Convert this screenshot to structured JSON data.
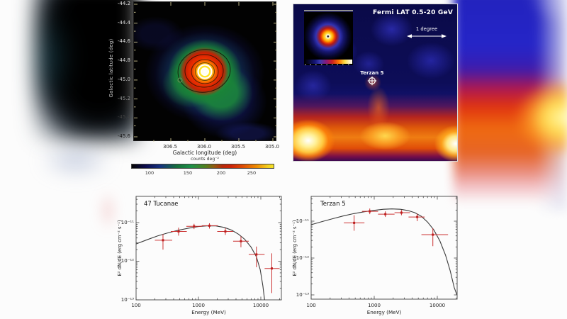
{
  "map_panel": {
    "ylabel": "Galactic latitude (deg)",
    "xlabel": "Galactic longitude (deg)",
    "ytick_labels": [
      "-44.2",
      "-44.4",
      "-44.6",
      "-44.8",
      "-45.0",
      "-45.2",
      "-45.4",
      "-45.6"
    ],
    "xtick_labels": [
      "306.5",
      "306.0",
      "305.5",
      "305.0"
    ],
    "colorbar": {
      "label": "counts deg⁻²",
      "tick_labels": [
        "100",
        "150",
        "200",
        "250"
      ]
    }
  },
  "fermi_panel": {
    "title": "Fermi LAT  0.5-20 GeV",
    "scale_label": "1 degree",
    "source_label": "Terzan 5"
  },
  "colors": {
    "data_point": "#bb1f1f",
    "error_bar": "#cc3333",
    "model_curve": "#3a3a3a",
    "frame": "#555555",
    "map_heat_sequence": [
      "#000000",
      "#14317e",
      "#1d9048",
      "#cc2408",
      "#ee8c02",
      "#f5e42a"
    ],
    "fermi_sky_base": "#0d0d58"
  },
  "chart_data": [
    {
      "type": "scatter",
      "title": "47 Tucanae",
      "xlabel": "Energy (MeV)",
      "ylabel": "E² dN/dE (erg cm⁻² s⁻¹)",
      "xscale": "log",
      "yscale": "log",
      "grid": false,
      "xlim": [
        100,
        21000
      ],
      "ylim": [
        1e-13,
        4.8e-11
      ],
      "xtick_values": [
        100,
        1000,
        10000
      ],
      "xtick_labels": [
        "100",
        "1000",
        "10000"
      ],
      "ytick_values": [
        1e-11,
        1e-12,
        1e-13
      ],
      "ytick_labels": [
        "10⁻¹¹",
        "10⁻¹²",
        "10⁻¹³"
      ],
      "points": [
        {
          "E": 270,
          "E_lo": 200,
          "E_hi": 380,
          "F": 3.5e-12,
          "F_lo": 2e-12,
          "F_hi": 5e-12
        },
        {
          "E": 480,
          "E_lo": 360,
          "E_hi": 650,
          "F": 5.9e-12,
          "F_lo": 4.6e-12,
          "F_hi": 7.4e-12
        },
        {
          "E": 850,
          "E_lo": 640,
          "E_hi": 1150,
          "F": 8e-12,
          "F_lo": 6.8e-12,
          "F_hi": 9.3e-12
        },
        {
          "E": 1500,
          "E_lo": 1130,
          "E_hi": 2050,
          "F": 8.3e-12,
          "F_lo": 7e-12,
          "F_hi": 9.6e-12
        },
        {
          "E": 2700,
          "E_lo": 2000,
          "E_hi": 3600,
          "F": 5.9e-12,
          "F_lo": 4.8e-12,
          "F_hi": 7.2e-12
        },
        {
          "E": 4800,
          "E_lo": 3600,
          "E_hi": 6400,
          "F": 3.3e-12,
          "F_lo": 2.3e-12,
          "F_hi": 4.4e-12
        },
        {
          "E": 8500,
          "E_lo": 6400,
          "E_hi": 11500,
          "F": 1.5e-12,
          "F_lo": 7e-13,
          "F_hi": 2.4e-12
        },
        {
          "E": 15000,
          "E_lo": 11500,
          "E_hi": 20000,
          "F": 6.5e-13,
          "F_lo": 1.5e-13,
          "F_hi": 1.6e-12
        }
      ],
      "model_curve": [
        [
          100,
          2.8e-12
        ],
        [
          150,
          3.6e-12
        ],
        [
          220,
          4.5e-12
        ],
        [
          320,
          5.4e-12
        ],
        [
          470,
          6.3e-12
        ],
        [
          700,
          7.2e-12
        ],
        [
          1000,
          7.9e-12
        ],
        [
          1400,
          8.25e-12
        ],
        [
          1900,
          8.2e-12
        ],
        [
          2600,
          7.5e-12
        ],
        [
          3400,
          6.4e-12
        ],
        [
          4400,
          5e-12
        ],
        [
          5500,
          3.7e-12
        ],
        [
          7000,
          2.3e-12
        ],
        [
          8500,
          1.3e-12
        ],
        [
          9800,
          6e-13
        ],
        [
          10800,
          2.3e-13
        ],
        [
          11500,
          1e-13
        ]
      ]
    },
    {
      "type": "scatter",
      "title": "Terzan 5",
      "xlabel": "Energy (MeV)",
      "ylabel": "E² dN/dE (erg cm⁻² s⁻¹)",
      "xscale": "log",
      "yscale": "log",
      "grid": false,
      "xlim": [
        100,
        20500
      ],
      "ylim": [
        1e-13,
        5.5e-11
      ],
      "xtick_values": [
        100,
        1000,
        10000
      ],
      "xtick_labels": [
        "100",
        "1000",
        "10000"
      ],
      "ytick_values": [
        1e-11,
        1e-12,
        1e-13
      ],
      "ytick_labels": [
        "10⁻¹¹",
        "10⁻¹²",
        "10⁻¹³"
      ],
      "points": [
        {
          "E": 480,
          "E_lo": 330,
          "E_hi": 700,
          "F": 9e-12,
          "F_lo": 5.5e-12,
          "F_hi": 1.45e-11
        },
        {
          "E": 850,
          "E_lo": 640,
          "E_hi": 1150,
          "F": 1.85e-11,
          "F_lo": 1.55e-11,
          "F_hi": 2.2e-11
        },
        {
          "E": 1500,
          "E_lo": 1150,
          "E_hi": 2100,
          "F": 1.55e-11,
          "F_lo": 1.3e-11,
          "F_hi": 1.85e-11
        },
        {
          "E": 2700,
          "E_lo": 2100,
          "E_hi": 3700,
          "F": 1.7e-11,
          "F_lo": 1.45e-11,
          "F_hi": 2e-11
        },
        {
          "E": 4800,
          "E_lo": 3500,
          "E_hi": 6300,
          "F": 1.3e-11,
          "F_lo": 1e-11,
          "F_hi": 1.6e-11
        },
        {
          "E": 8500,
          "E_lo": 5600,
          "E_hi": 14800,
          "F": 4.3e-12,
          "F_lo": 2.1e-12,
          "F_hi": 6.4e-12
        }
      ],
      "model_curve": [
        [
          100,
          8e-12
        ],
        [
          150,
          9.8e-12
        ],
        [
          220,
          1.17e-11
        ],
        [
          320,
          1.38e-11
        ],
        [
          470,
          1.6e-11
        ],
        [
          700,
          1.8e-11
        ],
        [
          1000,
          1.97e-11
        ],
        [
          1400,
          2.1e-11
        ],
        [
          1900,
          2.15e-11
        ],
        [
          2600,
          2.1e-11
        ],
        [
          3400,
          1.95e-11
        ],
        [
          4400,
          1.7e-11
        ],
        [
          5600,
          1.35e-11
        ],
        [
          7000,
          9.5e-12
        ],
        [
          8800,
          5.8e-12
        ],
        [
          11000,
          2.9e-12
        ],
        [
          13500,
          1.2e-12
        ],
        [
          16000,
          4.5e-13
        ],
        [
          18500,
          1.6e-13
        ],
        [
          20500,
          1e-13
        ]
      ]
    }
  ]
}
